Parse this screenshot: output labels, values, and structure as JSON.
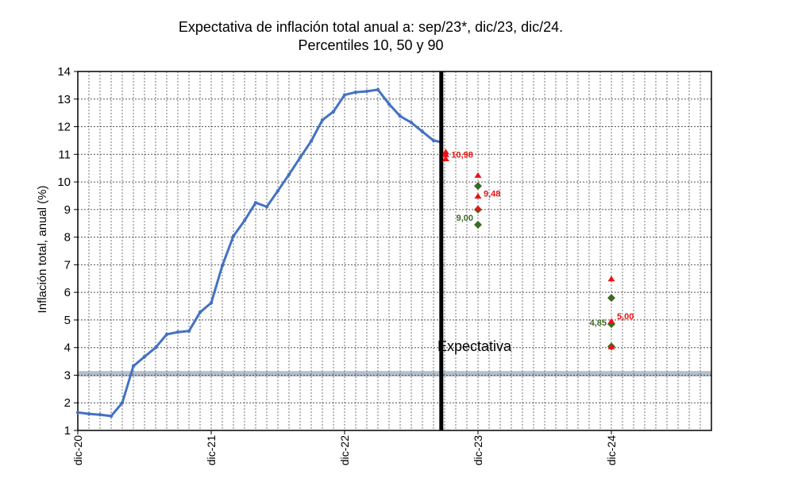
{
  "chart_data": {
    "type": "line",
    "title": "Expectativa de inflación total anual a: sep/23*, dic/23, dic/24.",
    "subtitle": "Percentiles 10, 50 y 90",
    "ylabel": "Inflación total, anual (%)",
    "xlabel": "",
    "ylim": [
      1,
      14
    ],
    "yticks": [
      "1",
      "2",
      "3",
      "4",
      "5",
      "6",
      "7",
      "8",
      "9",
      "10",
      "11",
      "12",
      "13",
      "14"
    ],
    "xlim": [
      0,
      57
    ],
    "xticks": [
      {
        "label": "dic-20",
        "pos": 0
      },
      {
        "label": "dic-21",
        "pos": 12
      },
      {
        "label": "dic-22",
        "pos": 24
      },
      {
        "label": "dic-23",
        "pos": 36
      },
      {
        "label": "dic-24",
        "pos": 48
      }
    ],
    "target_band": {
      "from": 2.95,
      "to": 3.15,
      "color": "#b4bfcc"
    },
    "expectation_divider": {
      "x": 32.7,
      "label": "Expectativa"
    },
    "series": [
      {
        "name": "Inflación total anual",
        "color": "#4472c4",
        "x": [
          0,
          1,
          2,
          3,
          4,
          5,
          6,
          7,
          8,
          9,
          10,
          11,
          12,
          13,
          14,
          15,
          16,
          17,
          18,
          19,
          20,
          21,
          22,
          23,
          24,
          25,
          26,
          27,
          28,
          29,
          30,
          31,
          32,
          32.7
        ],
        "values": [
          1.65,
          1.6,
          1.57,
          1.52,
          2.0,
          3.33,
          3.67,
          4.0,
          4.48,
          4.56,
          4.6,
          5.28,
          5.62,
          6.97,
          8.04,
          8.6,
          9.25,
          9.1,
          9.68,
          10.27,
          10.88,
          11.48,
          12.24,
          12.55,
          13.15,
          13.25,
          13.28,
          13.34,
          12.82,
          12.38,
          12.15,
          11.82,
          11.5,
          11.44
        ]
      }
    ],
    "expectations": [
      {
        "period": "sep/23",
        "x": 33.1,
        "p10": null,
        "p50": null,
        "p90": null,
        "red": [
          10.85,
          11.0,
          11.1
        ],
        "label": "10,98"
      },
      {
        "period": "dic/23",
        "x": 36,
        "green_p10": 8.45,
        "green_p50": 9.0,
        "green_p90": 9.85,
        "red": [
          10.25,
          9.5,
          9.06
        ],
        "red_label": "9,48",
        "green_label": "9,00"
      },
      {
        "period": "dic/24",
        "x": 48,
        "green_p10": 4.04,
        "green_p50": 4.85,
        "green_p90": 5.8,
        "red": [
          6.5,
          4.97,
          4.04
        ],
        "red_label": "5,00",
        "green_label": "4,85"
      }
    ],
    "colors": {
      "red": "#ee1111",
      "green": "#3e6a25",
      "grid": "#555555",
      "axis": "#000000",
      "divider": "#000000"
    }
  }
}
